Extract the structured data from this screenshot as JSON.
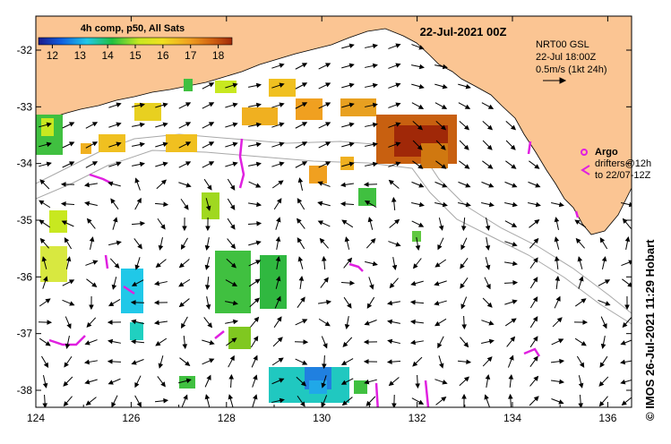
{
  "map": {
    "title": "22-Jul-2021 00Z",
    "lon_ticks": [
      "124",
      "126",
      "128",
      "130",
      "132",
      "134",
      "136"
    ],
    "lat_ticks": [
      "-32",
      "-33",
      "-34",
      "-35",
      "-36",
      "-37",
      "-38"
    ],
    "lon_range": [
      124,
      136.5
    ],
    "lat_range": [
      -31.4,
      -38.3
    ]
  },
  "colorbar": {
    "title": "4h comp, p50, All Sats",
    "ticks": [
      "12",
      "13",
      "14",
      "15",
      "16",
      "17",
      "18"
    ],
    "range": [
      11.5,
      18.5
    ]
  },
  "gsl_box": {
    "line1": "NRT00 GSL",
    "line2": "22-Jul 18:00Z",
    "line3": "0.5m/s (1kt 24h)"
  },
  "legend": {
    "argo_label": "Argo",
    "drifters_line1": "drifters@12h",
    "drifters_line2": "to 22/07-12Z"
  },
  "credit": "© IMOS 26-Jul-2021 11:29 Hobart",
  "colors": {
    "land": "#fbc593",
    "ocean": "#ffffff",
    "magenta": "#e020e0",
    "contour": "#a8a8a8"
  }
}
